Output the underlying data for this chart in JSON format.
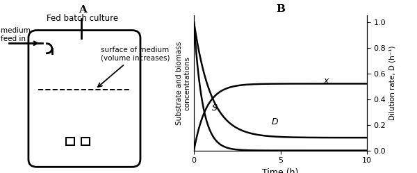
{
  "panel_A_label": "A",
  "panel_B_label": "B",
  "title_A": "Fed batch culture",
  "label_medium": "medium\nfeed in",
  "label_surface": "surface of medium\n(volume increases)",
  "ylabel_left": "Substrate and biomass\nconcentrations",
  "ylabel_right": "Dilution rate, D (h⁻¹)",
  "xlabel": "Time (h)",
  "xlim": [
    0,
    10
  ],
  "ylim_left": [
    0,
    1.05
  ],
  "ylim_right": [
    0,
    1.05
  ],
  "yticks_right": [
    0,
    0.2,
    0.4,
    0.6,
    0.8,
    1.0
  ],
  "xticks": [
    0,
    5,
    10
  ],
  "line_color": "#000000",
  "background_color": "#ffffff",
  "label_x": "x",
  "label_S": "S",
  "label_D": "D"
}
